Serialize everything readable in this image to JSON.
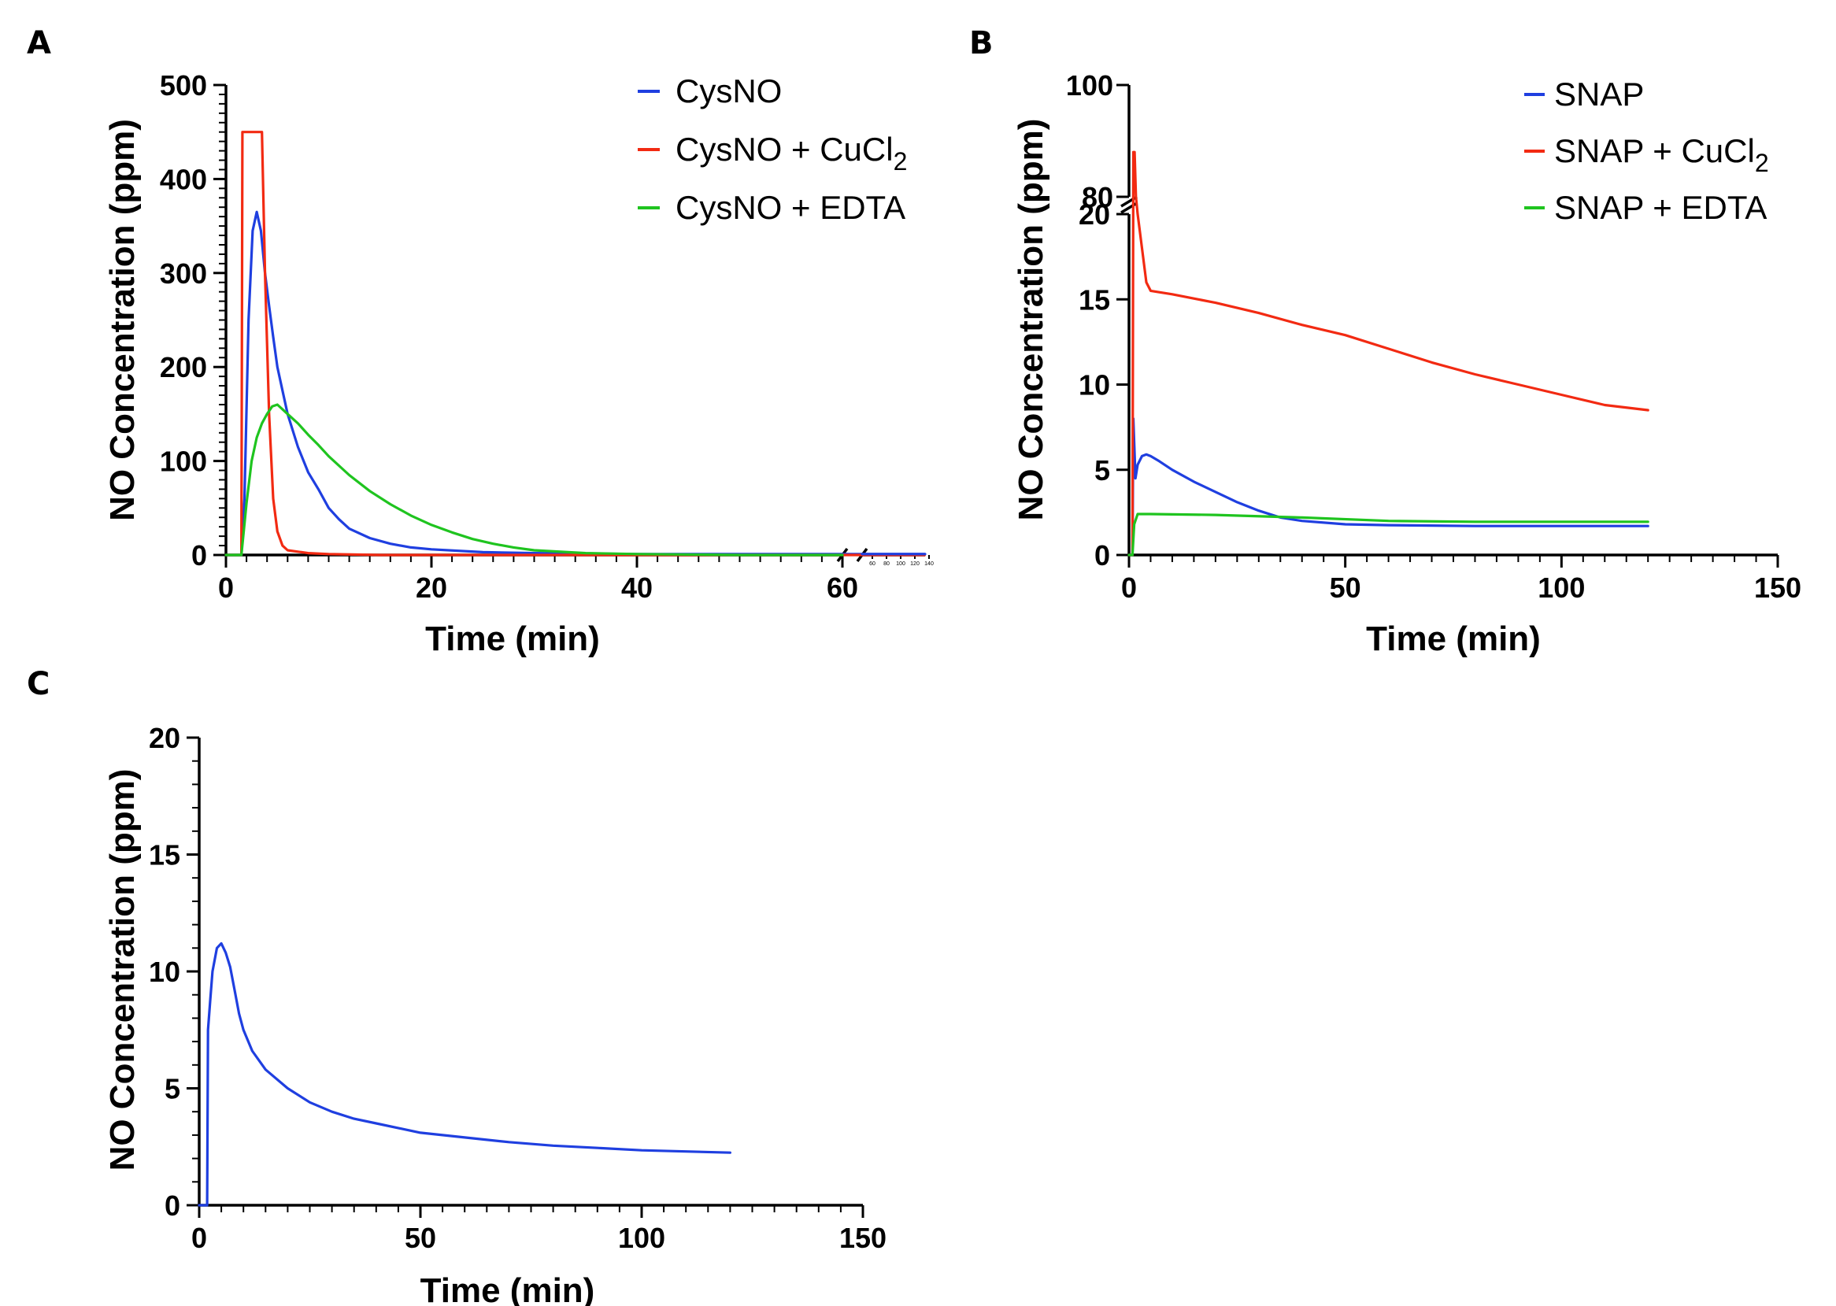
{
  "figure": {
    "panel_letters": [
      "A",
      "B",
      "C"
    ]
  },
  "chart_data": [
    {
      "panel": "A",
      "type": "line",
      "xlabel": "Time (min)",
      "ylabel": "NO Concentration (ppm)",
      "xlim": [
        0,
        68
      ],
      "ylim": [
        0,
        500
      ],
      "xticks": [
        0,
        20,
        40,
        60
      ],
      "yticks": [
        0,
        100,
        200,
        300,
        400,
        500
      ],
      "x_axis_break_after": 60,
      "post_break_ticks": [
        "60",
        "80",
        "100",
        "120",
        "140"
      ],
      "grid": false,
      "legend_position": "top-right",
      "series": [
        {
          "name": "CysNO",
          "name_parts": [
            "CysNO",
            ""
          ],
          "color": "#1f3fe0",
          "points": [
            [
              0,
              0
            ],
            [
              1.5,
              0
            ],
            [
              1.8,
              60
            ],
            [
              2.2,
              250
            ],
            [
              2.6,
              345
            ],
            [
              3.0,
              365
            ],
            [
              3.4,
              345
            ],
            [
              3.8,
              300
            ],
            [
              4.2,
              265
            ],
            [
              4.6,
              232
            ],
            [
              5.0,
              200
            ],
            [
              5.5,
              175
            ],
            [
              6.0,
              150
            ],
            [
              7,
              115
            ],
            [
              8,
              88
            ],
            [
              9,
              70
            ],
            [
              10,
              50
            ],
            [
              11,
              38
            ],
            [
              12,
              28
            ],
            [
              14,
              18
            ],
            [
              16,
              12
            ],
            [
              18,
              8
            ],
            [
              20,
              6
            ],
            [
              25,
              3
            ],
            [
              30,
              2
            ],
            [
              40,
              1
            ],
            [
              50,
              1
            ],
            [
              60,
              1
            ],
            [
              68,
              1
            ]
          ]
        },
        {
          "name": "CysNO + CuCl2",
          "name_parts": [
            "CysNO + CuCl",
            "2"
          ],
          "color": "#f22a12",
          "points": [
            [
              0,
              0
            ],
            [
              1.5,
              0
            ],
            [
              1.6,
              450
            ],
            [
              3.5,
              450
            ],
            [
              3.8,
              300
            ],
            [
              4.2,
              150
            ],
            [
              4.6,
              60
            ],
            [
              5.0,
              25
            ],
            [
              5.5,
              10
            ],
            [
              6,
              5
            ],
            [
              8,
              2
            ],
            [
              10,
              1
            ],
            [
              15,
              0
            ],
            [
              68,
              0
            ]
          ]
        },
        {
          "name": "CysNO + EDTA",
          "name_parts": [
            "CysNO + EDTA",
            ""
          ],
          "color": "#1fc41f",
          "points": [
            [
              0,
              0
            ],
            [
              1.5,
              0
            ],
            [
              2.0,
              55
            ],
            [
              2.5,
              100
            ],
            [
              3.0,
              125
            ],
            [
              3.5,
              140
            ],
            [
              4.0,
              150
            ],
            [
              4.5,
              158
            ],
            [
              5.0,
              160
            ],
            [
              5.5,
              155
            ],
            [
              6,
              150
            ],
            [
              7,
              140
            ],
            [
              8,
              128
            ],
            [
              9,
              117
            ],
            [
              10,
              105
            ],
            [
              12,
              85
            ],
            [
              14,
              68
            ],
            [
              16,
              54
            ],
            [
              18,
              42
            ],
            [
              20,
              32
            ],
            [
              22,
              24
            ],
            [
              24,
              17
            ],
            [
              26,
              12
            ],
            [
              28,
              8
            ],
            [
              30,
              5
            ],
            [
              35,
              2
            ],
            [
              40,
              1
            ],
            [
              50,
              0
            ],
            [
              60,
              0
            ]
          ]
        }
      ]
    },
    {
      "panel": "B",
      "type": "line",
      "xlabel": "Time (min)",
      "ylabel": "NO Concentration (ppm)",
      "xlim": [
        0,
        150
      ],
      "ylim": [
        0,
        20
      ],
      "upper_ylim": [
        80,
        100
      ],
      "xticks": [
        0,
        50,
        100,
        150
      ],
      "yticks": [
        0,
        5,
        10,
        15,
        20
      ],
      "upper_yticks": [
        80,
        100
      ],
      "y_axis_break": [
        20,
        80
      ],
      "grid": false,
      "legend_position": "top-right",
      "series": [
        {
          "name": "SNAP",
          "name_parts": [
            "SNAP",
            ""
          ],
          "color": "#1f3fe0",
          "points": [
            [
              0,
              0
            ],
            [
              0.8,
              0
            ],
            [
              1.0,
              8
            ],
            [
              1.5,
              4.5
            ],
            [
              2,
              5.3
            ],
            [
              3,
              5.8
            ],
            [
              4,
              5.9
            ],
            [
              5,
              5.8
            ],
            [
              7,
              5.5
            ],
            [
              10,
              5.0
            ],
            [
              15,
              4.3
            ],
            [
              20,
              3.7
            ],
            [
              25,
              3.1
            ],
            [
              30,
              2.6
            ],
            [
              35,
              2.2
            ],
            [
              40,
              2.0
            ],
            [
              50,
              1.8
            ],
            [
              60,
              1.75
            ],
            [
              80,
              1.7
            ],
            [
              100,
              1.7
            ],
            [
              120,
              1.7
            ]
          ]
        },
        {
          "name": "SNAP + CuCl2",
          "name_parts": [
            "SNAP + CuCl",
            "2"
          ],
          "color": "#f22a12",
          "points": [
            [
              0,
              0
            ],
            [
              0.8,
              0
            ],
            [
              1.0,
              88
            ],
            [
              1.3,
              88
            ],
            [
              1.6,
              80
            ],
            [
              2,
              20
            ],
            [
              3,
              18
            ],
            [
              4,
              16
            ],
            [
              5,
              15.5
            ],
            [
              10,
              15.3
            ],
            [
              20,
              14.8
            ],
            [
              30,
              14.2
            ],
            [
              40,
              13.5
            ],
            [
              50,
              12.9
            ],
            [
              60,
              12.1
            ],
            [
              70,
              11.3
            ],
            [
              80,
              10.6
            ],
            [
              90,
              10.0
            ],
            [
              100,
              9.4
            ],
            [
              110,
              8.8
            ],
            [
              120,
              8.5
            ]
          ]
        },
        {
          "name": "SNAP + EDTA",
          "name_parts": [
            "SNAP + EDTA",
            ""
          ],
          "color": "#1fc41f",
          "points": [
            [
              0,
              0
            ],
            [
              0.8,
              0
            ],
            [
              1.2,
              1.8
            ],
            [
              2,
              2.4
            ],
            [
              5,
              2.4
            ],
            [
              20,
              2.35
            ],
            [
              40,
              2.2
            ],
            [
              60,
              2.0
            ],
            [
              80,
              1.95
            ],
            [
              100,
              1.95
            ],
            [
              120,
              1.95
            ]
          ]
        }
      ]
    },
    {
      "panel": "C",
      "type": "line",
      "xlabel": "Time (min)",
      "ylabel": "NO Concentration (ppm)",
      "xlim": [
        0,
        150
      ],
      "ylim": [
        0,
        20
      ],
      "xticks": [
        0,
        50,
        100,
        150
      ],
      "yticks": [
        0,
        5,
        10,
        15,
        20
      ],
      "grid": false,
      "legend_position": "none",
      "series": [
        {
          "color": "#1f3fe0",
          "points": [
            [
              0,
              0
            ],
            [
              1.8,
              0
            ],
            [
              2,
              7.5
            ],
            [
              2.5,
              8.8
            ],
            [
              3,
              10
            ],
            [
              4,
              11
            ],
            [
              5,
              11.2
            ],
            [
              6,
              10.8
            ],
            [
              7,
              10.2
            ],
            [
              8,
              9.2
            ],
            [
              9,
              8.2
            ],
            [
              10,
              7.5
            ],
            [
              12,
              6.6
            ],
            [
              15,
              5.8
            ],
            [
              20,
              5.0
            ],
            [
              25,
              4.4
            ],
            [
              30,
              4.0
            ],
            [
              35,
              3.7
            ],
            [
              40,
              3.5
            ],
            [
              50,
              3.1
            ],
            [
              60,
              2.9
            ],
            [
              70,
              2.7
            ],
            [
              80,
              2.55
            ],
            [
              90,
              2.45
            ],
            [
              100,
              2.35
            ],
            [
              110,
              2.3
            ],
            [
              120,
              2.25
            ]
          ]
        }
      ]
    }
  ]
}
